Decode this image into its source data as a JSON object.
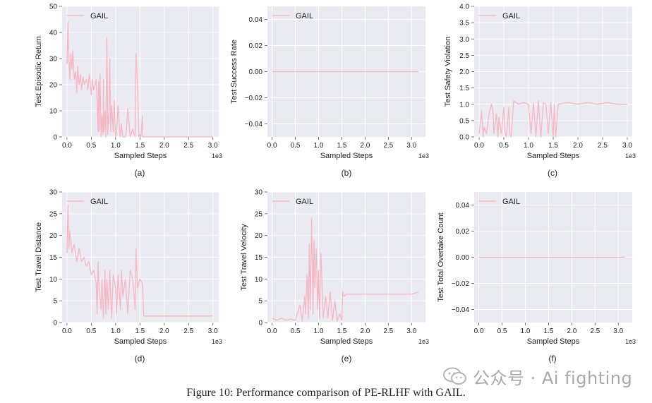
{
  "figure": {
    "caption": "Figure 10: Performance comparison of PE-RLHF with GAIL.",
    "watermark": "公众号 · Ai fighting"
  },
  "colors": {
    "plot_bg": "#eaeaf2",
    "grid": "#ffffff",
    "series": "#f7b6c2",
    "axis_text": "#222222"
  },
  "chart_data": [
    {
      "panel": "(a)",
      "type": "line",
      "title": "",
      "xlabel": "Sampled Steps",
      "ylabel": "Test Episodic Return",
      "x_multiplier": "1e3",
      "xlim": [
        -0.1,
        3.12
      ],
      "ylim": [
        0,
        50
      ],
      "xticks": [
        "0.0",
        "0.5",
        "1.0",
        "1.5",
        "2.0",
        "2.5",
        "3.0"
      ],
      "yticks": [
        "0",
        "10",
        "20",
        "30",
        "40",
        "50"
      ],
      "legend": "top-left",
      "series": [
        {
          "name": "GAIL",
          "x": [
            0.0,
            0.02,
            0.04,
            0.06,
            0.08,
            0.1,
            0.12,
            0.15,
            0.18,
            0.2,
            0.22,
            0.25,
            0.28,
            0.3,
            0.33,
            0.36,
            0.4,
            0.43,
            0.46,
            0.5,
            0.52,
            0.55,
            0.58,
            0.6,
            0.62,
            0.64,
            0.65,
            0.66,
            0.68,
            0.7,
            0.72,
            0.74,
            0.75,
            0.76,
            0.78,
            0.8,
            0.82,
            0.84,
            0.85,
            0.86,
            0.88,
            0.9,
            0.92,
            0.95,
            0.97,
            1.0,
            1.02,
            1.05,
            1.08,
            1.1,
            1.12,
            1.15,
            1.2,
            1.22,
            1.25,
            1.3,
            1.35,
            1.4,
            1.42,
            1.45,
            1.48,
            1.5,
            1.52,
            1.55,
            1.56,
            1.6,
            2.0,
            2.5,
            3.0
          ],
          "y": [
            28,
            44,
            30,
            22,
            32,
            26,
            33,
            22,
            25,
            17,
            27,
            20,
            24,
            18,
            23,
            20,
            22,
            18,
            24,
            16,
            22,
            18,
            20,
            22,
            14,
            2,
            21,
            2,
            24,
            0,
            8,
            1,
            22,
            2,
            10,
            0,
            38,
            1,
            8,
            5,
            30,
            2,
            12,
            2,
            14,
            0,
            2,
            12,
            3,
            0,
            5,
            0,
            0,
            2,
            11,
            0,
            3,
            0,
            32,
            20,
            0,
            1,
            0,
            8,
            0,
            0,
            0,
            0,
            0
          ]
        }
      ]
    },
    {
      "panel": "(b)",
      "type": "line",
      "title": "",
      "xlabel": "Sampled Steps",
      "ylabel": "Test Success Rate",
      "x_multiplier": "1e3",
      "xlim": [
        -0.1,
        3.3
      ],
      "ylim": [
        -0.05,
        0.05
      ],
      "xticks": [
        "0.0",
        "0.5",
        "1.0",
        "1.5",
        "2.0",
        "2.5",
        "3.0"
      ],
      "yticks": [
        "−0.04",
        "−0.02",
        "0.00",
        "0.02",
        "0.04"
      ],
      "legend": "top-left",
      "series": [
        {
          "name": "GAIL",
          "x": [
            0.0,
            3.15
          ],
          "y": [
            0,
            0
          ]
        }
      ]
    },
    {
      "panel": "(c)",
      "type": "line",
      "title": "",
      "xlabel": "Sampled Steps",
      "ylabel": "Test Safety Violation",
      "x_multiplier": "1e3",
      "xlim": [
        -0.1,
        3.1
      ],
      "ylim": [
        0,
        4.0
      ],
      "xticks": [
        "0.0",
        "0.5",
        "1.0",
        "1.5",
        "2.0",
        "2.5",
        "3.0"
      ],
      "yticks": [
        "0.0",
        "0.5",
        "1.0",
        "1.5",
        "2.0",
        "2.5",
        "3.0",
        "3.5",
        "4.0"
      ],
      "legend": "top-left",
      "series": [
        {
          "name": "GAIL",
          "x": [
            0.0,
            0.05,
            0.08,
            0.1,
            0.15,
            0.2,
            0.25,
            0.28,
            0.3,
            0.35,
            0.38,
            0.4,
            0.45,
            0.5,
            0.52,
            0.55,
            0.6,
            0.62,
            0.65,
            0.7,
            0.75,
            0.8,
            0.9,
            1.0,
            1.05,
            1.1,
            1.15,
            1.2,
            1.25,
            1.3,
            1.35,
            1.4,
            1.45,
            1.5,
            1.52,
            1.55,
            1.6,
            1.8,
            2.0,
            2.2,
            2.4,
            2.6,
            2.8,
            3.0
          ],
          "y": [
            0.1,
            0.8,
            0.0,
            0.3,
            0.1,
            0.7,
            1.0,
            0.8,
            0.1,
            0.7,
            0.0,
            0.6,
            0.1,
            0.9,
            0.2,
            0.0,
            0.9,
            0.1,
            0.0,
            1.1,
            1.05,
            1.0,
            1.05,
            1.0,
            0.1,
            1.05,
            0.0,
            1.1,
            0.0,
            1.05,
            1.0,
            0.1,
            1.05,
            0.0,
            1.0,
            0.0,
            1.0,
            1.05,
            1.0,
            1.05,
            1.0,
            1.05,
            1.0,
            1.0
          ]
        }
      ]
    },
    {
      "panel": "(d)",
      "type": "line",
      "title": "",
      "xlabel": "Sampled Steps",
      "ylabel": "Test Travel Distance",
      "x_multiplier": "1e3",
      "xlim": [
        -0.1,
        3.12
      ],
      "ylim": [
        0,
        30
      ],
      "xticks": [
        "0.0",
        "0.5",
        "1.0",
        "1.5",
        "2.0",
        "2.5",
        "3.0"
      ],
      "yticks": [
        "0",
        "5",
        "10",
        "15",
        "20",
        "25",
        "30"
      ],
      "legend": "top-left",
      "series": [
        {
          "name": "GAIL",
          "x": [
            0.0,
            0.02,
            0.04,
            0.06,
            0.1,
            0.15,
            0.2,
            0.25,
            0.3,
            0.35,
            0.4,
            0.45,
            0.5,
            0.55,
            0.6,
            0.62,
            0.64,
            0.66,
            0.7,
            0.72,
            0.75,
            0.78,
            0.8,
            0.82,
            0.85,
            0.88,
            0.9,
            0.92,
            0.95,
            1.0,
            1.02,
            1.05,
            1.1,
            1.12,
            1.15,
            1.2,
            1.25,
            1.3,
            1.35,
            1.4,
            1.42,
            1.45,
            1.5,
            1.55,
            1.58,
            1.6,
            2.0,
            2.5,
            3.0
          ],
          "y": [
            16,
            27,
            17,
            21,
            16,
            18,
            14,
            17,
            14,
            15,
            13,
            14,
            11,
            12,
            9,
            2,
            14,
            8,
            3,
            10,
            1,
            12,
            2,
            10,
            3,
            12,
            6,
            1,
            11,
            8,
            2,
            11,
            3,
            12,
            6,
            10,
            2,
            12,
            10,
            3,
            17,
            8,
            10,
            9,
            1.5,
            1.5,
            1.5,
            1.5,
            1.5
          ]
        }
      ]
    },
    {
      "panel": "(e)",
      "type": "line",
      "title": "",
      "xlabel": "Sampled Steps",
      "ylabel": "Test Travel Velocity",
      "x_multiplier": "1e3",
      "xlim": [
        -0.1,
        3.3
      ],
      "ylim": [
        0,
        30
      ],
      "xticks": [
        "0.0",
        "0.5",
        "1.0",
        "1.5",
        "2.0",
        "2.5",
        "3.0"
      ],
      "yticks": [
        "0",
        "5",
        "10",
        "15",
        "20",
        "25",
        "30"
      ],
      "legend": "top-left",
      "series": [
        {
          "name": "GAIL",
          "x": [
            0.0,
            0.1,
            0.2,
            0.3,
            0.4,
            0.5,
            0.6,
            0.65,
            0.7,
            0.72,
            0.75,
            0.78,
            0.8,
            0.82,
            0.85,
            0.88,
            0.9,
            0.92,
            0.95,
            0.98,
            1.0,
            1.02,
            1.05,
            1.1,
            1.15,
            1.2,
            1.25,
            1.3,
            1.35,
            1.4,
            1.45,
            1.5,
            1.52,
            1.55,
            1.6,
            2.0,
            2.5,
            3.0,
            3.15
          ],
          "y": [
            1,
            0.5,
            1,
            0.5,
            0.8,
            0.5,
            4,
            0.3,
            6,
            2,
            11,
            1,
            18,
            3,
            24,
            2,
            19,
            8,
            17,
            3,
            12,
            1,
            16,
            1,
            6,
            1,
            7,
            0.5,
            5,
            0.3,
            2,
            0.5,
            7,
            6,
            6.5,
            6.5,
            6.5,
            6.5,
            7
          ]
        }
      ]
    },
    {
      "panel": "(f)",
      "type": "line",
      "title": "",
      "xlabel": "Sampled Steps",
      "ylabel": "Test Total Overtake Count",
      "x_multiplier": "1e3",
      "xlim": [
        -0.1,
        3.3
      ],
      "ylim": [
        -0.05,
        0.05
      ],
      "xticks": [
        "0.0",
        "0.5",
        "1.0",
        "1.5",
        "2.0",
        "2.5",
        "3.0"
      ],
      "yticks": [
        "−0.04",
        "−0.02",
        "0.00",
        "0.02",
        "0.04"
      ],
      "legend": "top-left",
      "series": [
        {
          "name": "GAIL",
          "x": [
            0.0,
            3.15
          ],
          "y": [
            0,
            0
          ]
        }
      ]
    }
  ]
}
